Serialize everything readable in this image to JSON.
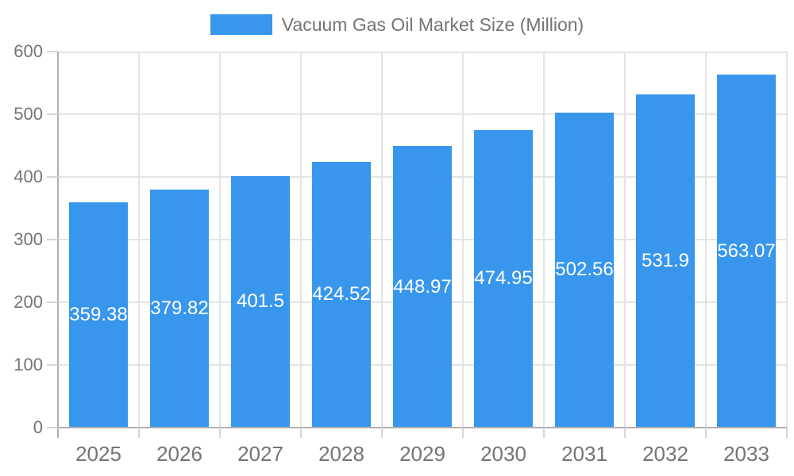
{
  "legend": {
    "label": "Vacuum Gas Oil Market Size (Million)"
  },
  "chart_data": {
    "type": "bar",
    "title": "",
    "series_name": "Vacuum Gas Oil Market Size (Million)",
    "categories": [
      "2025",
      "2026",
      "2027",
      "2028",
      "2029",
      "2030",
      "2031",
      "2032",
      "2033"
    ],
    "values": [
      359.38,
      379.82,
      401.5,
      424.52,
      448.97,
      474.95,
      502.56,
      531.9,
      563.07
    ],
    "xlabel": "",
    "ylabel": "",
    "ylim": [
      0,
      600
    ],
    "yticks": [
      0,
      100,
      200,
      300,
      400,
      500,
      600
    ],
    "grid": true,
    "legend_position": "top-center",
    "value_label_position": "inside-center"
  },
  "colors": {
    "background": "#ffffff",
    "bar": "#3897ec",
    "axis": "#b0b0b0",
    "gridline": "#e4e4e4",
    "tick": "#d6d6d6",
    "text": "#757575",
    "bar_label": "#ffffff"
  }
}
